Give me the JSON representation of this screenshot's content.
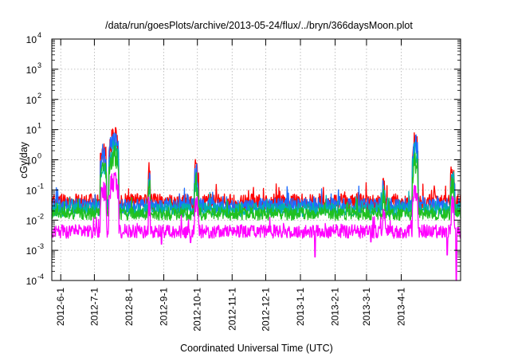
{
  "chart_data": {
    "type": "line",
    "title": "/data/run/goesPlots/archive/2013-05-24/flux/../bryn/366daysMoon.plot",
    "xlabel": "Coordinated Universal Time (UTC)",
    "ylabel": "cGy/day",
    "y_scale": "log",
    "ylim": [
      0.0001,
      10000
    ],
    "y_ticks": [
      {
        "base": "10",
        "exp": "-4",
        "value": 0.0001
      },
      {
        "base": "10",
        "exp": "-3",
        "value": 0.001
      },
      {
        "base": "10",
        "exp": "-2",
        "value": 0.01
      },
      {
        "base": "10",
        "exp": "-1",
        "value": 0.1
      },
      {
        "base": "10",
        "exp": "0",
        "value": 1
      },
      {
        "base": "10",
        "exp": "1",
        "value": 10
      },
      {
        "base": "10",
        "exp": "2",
        "value": 100
      },
      {
        "base": "10",
        "exp": "3",
        "value": 1000
      },
      {
        "base": "10",
        "exp": "4",
        "value": 10000
      }
    ],
    "xlim": [
      "2012-05-24",
      "2013-05-24"
    ],
    "x_ticks": [
      "2012-6-1",
      "2012-7-1",
      "2012-8-1",
      "2012-9-1",
      "2012-10-1",
      "2012-11-1",
      "2012-12-1",
      "2013-1-1",
      "2013-2-1",
      "2013-3-1",
      "2013-4-1"
    ],
    "grid": true,
    "legend": "none",
    "series": [
      {
        "color": "#ff0000",
        "baseline": 0.04,
        "noise": 0.55,
        "dips": []
      },
      {
        "color": "#1e6cff",
        "baseline": 0.03,
        "noise": 0.5,
        "dips": []
      },
      {
        "color": "#00b0b0",
        "baseline": 0.022,
        "noise": 0.45,
        "dips": []
      },
      {
        "color": "#20c020",
        "baseline": 0.016,
        "noise": 0.42,
        "dips": []
      },
      {
        "color": "#ff00ff",
        "baseline": 0.0042,
        "noise": 0.45,
        "dips": [
          {
            "date": "2012-08-30",
            "value": 0.0016
          },
          {
            "date": "2012-09-25",
            "value": 0.0018
          },
          {
            "date": "2013-01-14",
            "value": 0.0006
          },
          {
            "date": "2013-03-05",
            "value": 0.0019
          },
          {
            "date": "2013-05-12",
            "value": 0.0007
          },
          {
            "date": "2013-05-20",
            "value": 0.0001
          }
        ]
      }
    ],
    "events": [
      {
        "start": "2012-07-06",
        "end": "2012-07-12",
        "peak": 2.0,
        "scale": [
          1.0,
          0.7,
          0.35,
          0.25,
          0.05
        ]
      },
      {
        "start": "2012-07-14",
        "end": "2012-07-23",
        "peak": 5.5,
        "scale": [
          1.0,
          0.7,
          0.35,
          0.22,
          0.035
        ]
      },
      {
        "start": "2012-08-18",
        "end": "2012-08-20",
        "peak": 0.35,
        "scale": [
          1.0,
          0.8,
          0.5,
          0.4,
          0.1
        ]
      },
      {
        "start": "2012-09-28",
        "end": "2012-10-02",
        "peak": 0.5,
        "scale": [
          1.0,
          0.6,
          0.4,
          0.3,
          0.06
        ]
      },
      {
        "start": "2013-03-15",
        "end": "2013-03-18",
        "peak": 0.15,
        "scale": [
          1.0,
          0.8,
          0.5,
          0.4,
          0.1
        ]
      },
      {
        "start": "2013-04-11",
        "end": "2013-04-16",
        "peak": 5.5,
        "scale": [
          1.0,
          0.6,
          0.3,
          0.15,
          0.02
        ]
      },
      {
        "start": "2013-05-15",
        "end": "2013-05-19",
        "peak": 0.5,
        "scale": [
          1.0,
          0.6,
          0.4,
          0.3,
          0.06
        ]
      }
    ]
  }
}
